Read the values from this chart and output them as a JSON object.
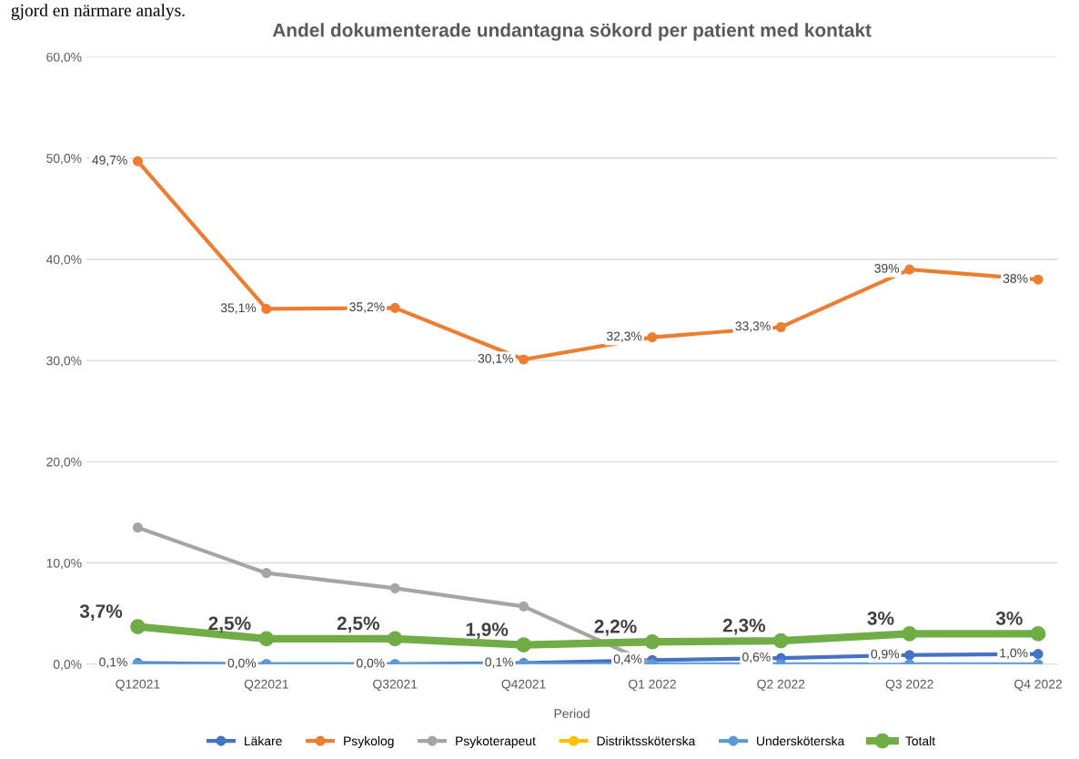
{
  "chart_data": {
    "type": "line",
    "title": "Andel dokumenterade undantagna sökord per patient med kontakt",
    "xlabel": "Period",
    "annotations": [
      "gjord en närmare analys."
    ],
    "categories": [
      "Q12021",
      "Q22021",
      "Q32021",
      "Q42021",
      "Q1 2022",
      "Q2 2022",
      "Q3 2022",
      "Q4 2022"
    ],
    "series": [
      {
        "name": "Läkare",
        "color": "#4472c4",
        "values": [
          0.1,
          0.0,
          0.0,
          0.1,
          0.4,
          0.6,
          0.9,
          1.0
        ],
        "value_labels": [
          "0,1%",
          "0,0%",
          "0,0%",
          "0,1%",
          "0,4%",
          "0,6%",
          "0,9%",
          "1,0%"
        ]
      },
      {
        "name": "Psykolog",
        "color": "#ed7d31",
        "values": [
          49.7,
          35.1,
          35.2,
          30.1,
          32.3,
          33.3,
          39,
          38
        ],
        "value_labels": [
          "49,7%",
          "35,1%",
          "35,2%",
          "30,1%",
          "32,3%",
          "33,3%",
          "39%",
          "38%"
        ]
      },
      {
        "name": "Psykoterapeut",
        "color": "#a5a5a5",
        "values": [
          13.5,
          9.0,
          7.5,
          5.7,
          0.0,
          null,
          null,
          null
        ]
      },
      {
        "name": "Distriktssköterska",
        "color": "#ffc000",
        "values": [
          null,
          null,
          null,
          null,
          null,
          null,
          null,
          null
        ]
      },
      {
        "name": "Undersköterska",
        "color": "#5b9bd5",
        "values": [
          0.0,
          0.0,
          0.0,
          0.0,
          0.0,
          0.0,
          0.0,
          0.0
        ]
      },
      {
        "name": "Totalt",
        "color": "#70ad47",
        "values": [
          3.7,
          2.5,
          2.5,
          1.9,
          2.2,
          2.3,
          3,
          3
        ],
        "value_labels": [
          "3,7%",
          "2,5%",
          "2,5%",
          "1,9%",
          "2,2%",
          "2,3%",
          "3%",
          "3%"
        ]
      }
    ],
    "ylim": [
      0,
      60
    ],
    "yticks": [
      {
        "value": 0,
        "label": "0,0%"
      },
      {
        "value": 10,
        "label": "10,0%"
      },
      {
        "value": 20,
        "label": "20,0%"
      },
      {
        "value": 30,
        "label": "30,0%"
      },
      {
        "value": 40,
        "label": "40,0%"
      },
      {
        "value": 50,
        "label": "50,0%"
      },
      {
        "value": 60,
        "label": "60,0%"
      }
    ],
    "grid": "y",
    "legend": "bottom",
    "marker": "circle",
    "line_style": "solid"
  }
}
